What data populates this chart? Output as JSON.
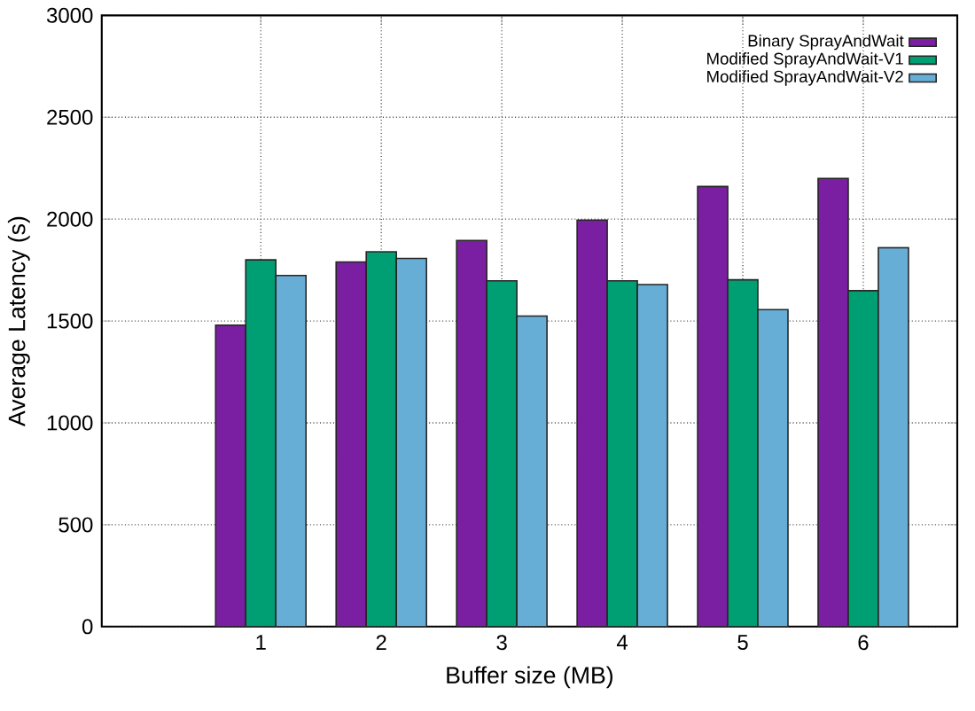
{
  "chart_data": {
    "type": "bar",
    "xlabel": "Buffer size (MB)",
    "ylabel": "Average Latency (s)",
    "categories": [
      "1",
      "2",
      "3",
      "4",
      "5",
      "6"
    ],
    "series": [
      {
        "name": "Binary SprayAndWait",
        "color": "#7b1fa2",
        "values": [
          1480,
          1790,
          1895,
          1995,
          2160,
          2200
        ]
      },
      {
        "name": "Modified SprayAndWait-V1",
        "color": "#009e73",
        "values": [
          1800,
          1840,
          1697,
          1697,
          1702,
          1649
        ]
      },
      {
        "name": "Modified SprayAndWait-V2",
        "color": "#67aed6",
        "values": [
          1723,
          1807,
          1524,
          1679,
          1556,
          1860
        ]
      }
    ],
    "ylim": [
      0,
      3000
    ],
    "yticks": [
      0,
      500,
      1000,
      1500,
      2000,
      2500,
      3000
    ],
    "grid": true,
    "legend": "top right"
  }
}
